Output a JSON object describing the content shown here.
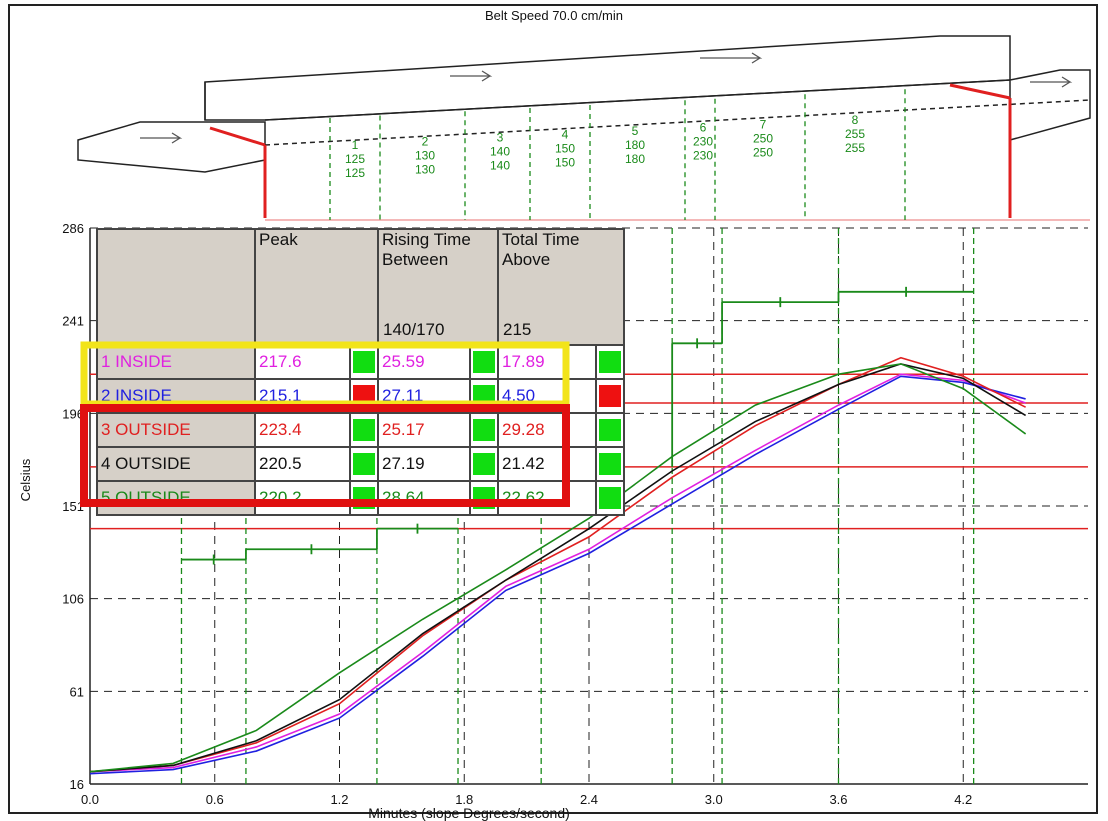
{
  "title": "Belt Speed 70.0 cm/min",
  "colors": {
    "zone_line": "#1a8a1a",
    "edge": "#e02020",
    "limit": "#e02020",
    "grid": "#222"
  },
  "zones": [
    {
      "label": "1",
      "top": "125",
      "bottom": "125"
    },
    {
      "label": "2",
      "top": "130",
      "bottom": "130"
    },
    {
      "label": "3",
      "top": "140",
      "bottom": "140"
    },
    {
      "label": "4",
      "top": "150",
      "bottom": "150"
    },
    {
      "label": "5",
      "top": "180",
      "bottom": "180"
    },
    {
      "label": "6",
      "top": "230",
      "bottom": "230"
    },
    {
      "label": "7",
      "top": "250",
      "bottom": "250"
    },
    {
      "label": "8",
      "top": "255",
      "bottom": "255"
    }
  ],
  "table": {
    "headers": [
      "",
      "Peak",
      "Rising Time Between",
      "Total Time Above"
    ],
    "subheaders": [
      "",
      "",
      "140/170",
      "215"
    ],
    "rows": [
      {
        "label": "1 INSIDE",
        "peak": "217.6",
        "rise": "25.59",
        "above": "17.89",
        "color": "#e020e0",
        "s1": "#11dd11",
        "s2": "#11dd11",
        "s3": "#11dd11"
      },
      {
        "label": "2 INSIDE",
        "peak": "215.1",
        "rise": "27.11",
        "above": "4.50",
        "color": "#2020e0",
        "s1": "#ee1111",
        "s2": "#11dd11",
        "s3": "#ee1111"
      },
      {
        "label": "3 OUTSIDE",
        "peak": "223.4",
        "rise": "25.17",
        "above": "29.28",
        "color": "#e02020",
        "s1": "#11dd11",
        "s2": "#11dd11",
        "s3": "#11dd11"
      },
      {
        "label": "4 OUTSIDE",
        "peak": "220.5",
        "rise": "27.19",
        "above": "21.42",
        "color": "#111111",
        "s1": "#11dd11",
        "s2": "#11dd11",
        "s3": "#11dd11"
      },
      {
        "label": "5 OUTSIDE",
        "peak": "220.2",
        "rise": "28.64",
        "above": "22.62",
        "color": "#1a8a1a",
        "s1": "#11dd11",
        "s2": "#11dd11",
        "s3": "#11dd11"
      }
    ]
  },
  "chart_data": {
    "type": "line",
    "xlabel": "Minutes (slope Degrees/second)",
    "ylabel": "Celsius",
    "xlim": [
      0,
      4.8
    ],
    "ylim": [
      16,
      286
    ],
    "x_ticks": [
      "0.0",
      "0.6",
      "1.2",
      "1.8",
      "2.4",
      "3.0",
      "3.6",
      "4.2"
    ],
    "y_ticks": [
      "16",
      "61",
      "106",
      "151",
      "196",
      "241",
      "286"
    ],
    "limit_lines": [
      140,
      170,
      201,
      215
    ],
    "zone_boundaries_min": [
      0.44,
      0.75,
      1.38,
      1.77,
      2.17,
      2.8,
      3.04,
      3.6,
      4.25
    ],
    "series": [
      {
        "name": "1 INSIDE",
        "color": "#e020e0",
        "x": [
          0,
          0.4,
          0.8,
          1.2,
          1.6,
          2.0,
          2.4,
          2.8,
          3.2,
          3.6,
          3.9,
          4.2,
          4.5
        ],
        "y": [
          22,
          24,
          34,
          50,
          80,
          112,
          130,
          155,
          178,
          200,
          215,
          212,
          201
        ]
      },
      {
        "name": "2 INSIDE",
        "color": "#2020e0",
        "x": [
          0,
          0.4,
          0.8,
          1.2,
          1.6,
          2.0,
          2.4,
          2.8,
          3.2,
          3.6,
          3.9,
          4.2,
          4.5
        ],
        "y": [
          21,
          23,
          32,
          48,
          78,
          110,
          128,
          152,
          176,
          198,
          214,
          211,
          203
        ]
      },
      {
        "name": "3 OUTSIDE",
        "color": "#e02020",
        "x": [
          0,
          0.4,
          0.8,
          1.2,
          1.6,
          2.0,
          2.4,
          2.8,
          3.2,
          3.6,
          3.9,
          4.2,
          4.5
        ],
        "y": [
          22,
          25,
          36,
          55,
          88,
          115,
          136,
          165,
          190,
          210,
          223,
          214,
          199
        ]
      },
      {
        "name": "4 OUTSIDE",
        "color": "#111111",
        "x": [
          0,
          0.4,
          0.8,
          1.2,
          1.6,
          2.0,
          2.4,
          2.8,
          3.2,
          3.6,
          3.9,
          4.2,
          4.5
        ],
        "y": [
          22,
          25,
          37,
          57,
          89,
          115,
          140,
          168,
          192,
          210,
          220,
          213,
          195
        ]
      },
      {
        "name": "5 OUTSIDE",
        "color": "#1a8a1a",
        "x": [
          0,
          0.4,
          0.8,
          1.2,
          1.6,
          2.0,
          2.4,
          2.8,
          3.2,
          3.6,
          3.9,
          4.2,
          4.5
        ],
        "y": [
          22,
          26,
          42,
          70,
          96,
          120,
          145,
          175,
          200,
          215,
          220,
          208,
          186
        ]
      }
    ],
    "setpoint_steps": [
      {
        "x0": 0.44,
        "x1": 0.75,
        "y": 125
      },
      {
        "x0": 0.75,
        "x1": 1.38,
        "y": 130
      },
      {
        "x0": 1.38,
        "x1": 1.77,
        "y": 140
      },
      {
        "x0": 2.8,
        "x1": 3.04,
        "y": 230
      },
      {
        "x0": 3.04,
        "x1": 3.6,
        "y": 250
      },
      {
        "x0": 3.6,
        "x1": 4.25,
        "y": 255
      }
    ]
  }
}
